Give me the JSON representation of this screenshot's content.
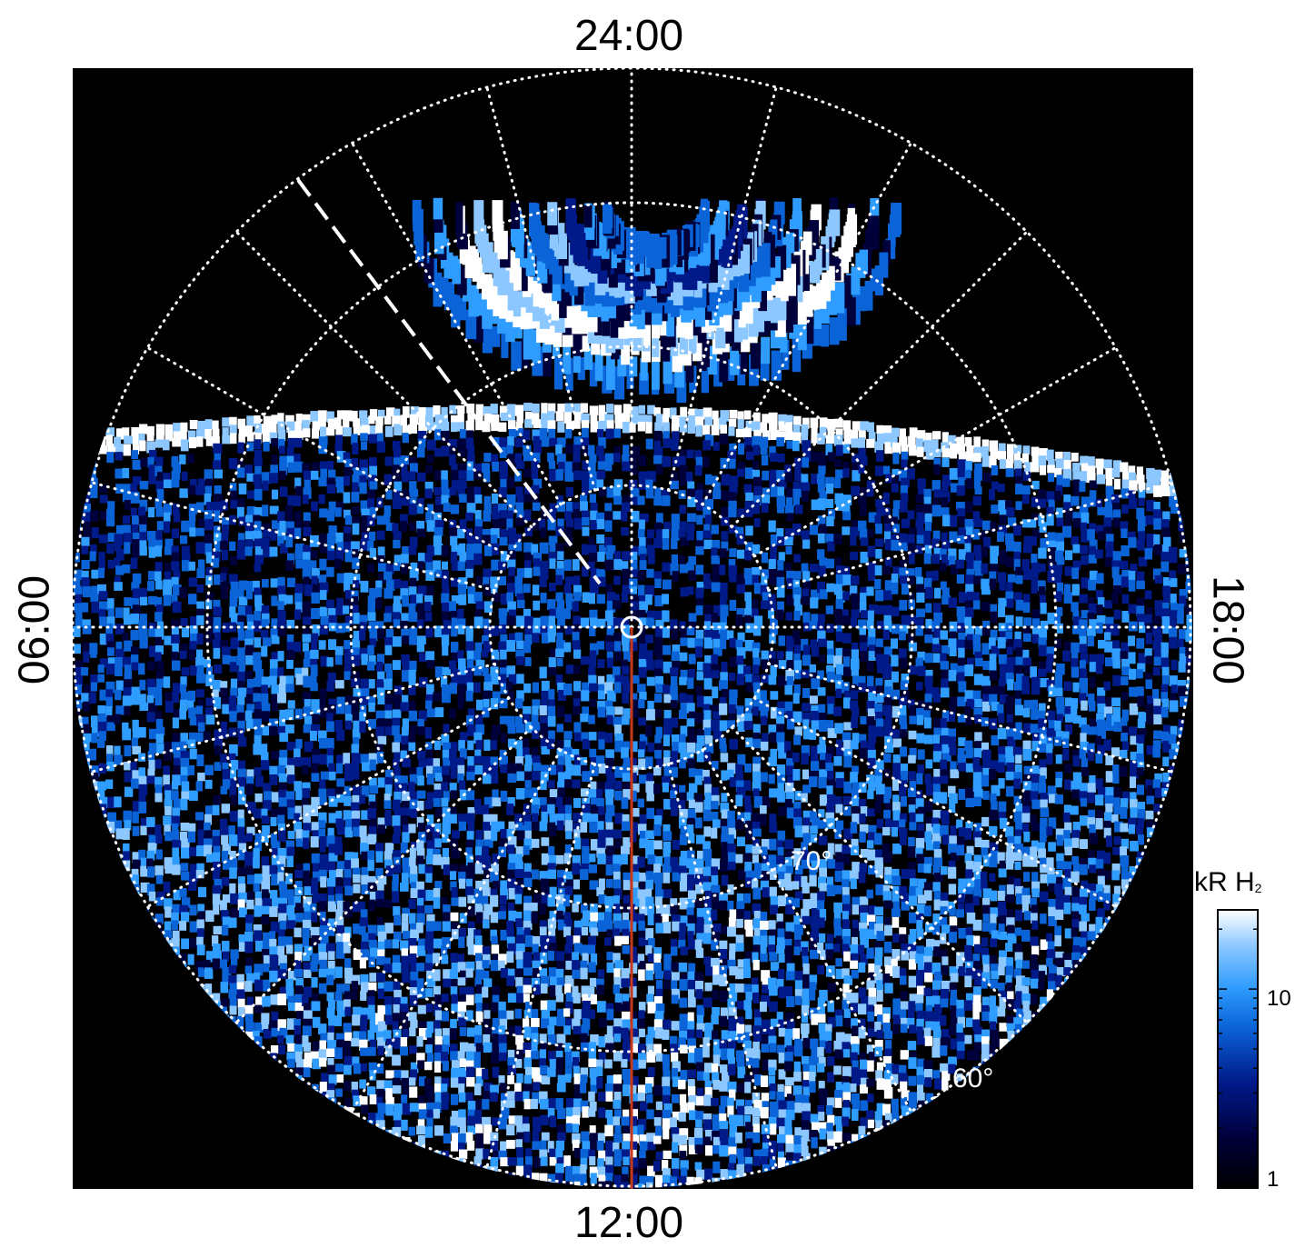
{
  "chart_data": {
    "type": "heatmap",
    "projection": "polar",
    "local_time_labels": {
      "top": "24:00",
      "bottom": "12:00",
      "left": "06:00",
      "right": "18:00"
    },
    "latitude_labels": [
      "70°",
      "60°"
    ],
    "colorbar": {
      "title": "kR H",
      "title_sub": "2",
      "ticks": [
        "10",
        "1"
      ],
      "scale": "log",
      "colors": [
        "#000000",
        "#00003a",
        "#001a8a",
        "#0a64d8",
        "#2f9cff",
        "#8cc8ff",
        "#ffffff"
      ]
    },
    "colors": {
      "background": "#000000",
      "grid": "#ffffff",
      "meridian_line": "#c8391a"
    }
  }
}
